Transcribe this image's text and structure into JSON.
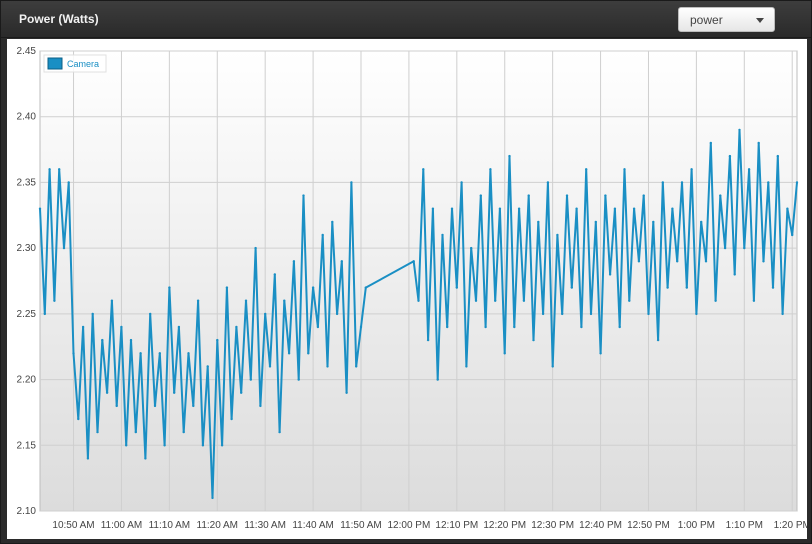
{
  "header": {
    "title": "Power (Watts)",
    "metric_select": {
      "value": "power",
      "options": [
        "power"
      ]
    }
  },
  "colors": {
    "series": "#1a8fc4",
    "grid": "#cfcfcf",
    "axis_text": "#444444"
  },
  "icons": {
    "dropdown": "chevron-down-icon"
  },
  "chart_data": {
    "type": "line",
    "title": "Power (Watts)",
    "xlabel": "",
    "ylabel": "",
    "ylim": [
      2.1,
      2.45
    ],
    "yticks": [
      2.1,
      2.15,
      2.2,
      2.25,
      2.3,
      2.35,
      2.4,
      2.45
    ],
    "ytick_labels": [
      "2.10",
      "2.15",
      "2.20",
      "2.25",
      "2.30",
      "2.35",
      "2.40",
      "2.45"
    ],
    "xlim": [
      "10:43 AM",
      "1:21 PM"
    ],
    "xticks": [
      "10:50 AM",
      "11:00 AM",
      "11:10 AM",
      "11:20 AM",
      "11:30 AM",
      "11:40 AM",
      "11:50 AM",
      "12:00 PM",
      "12:10 PM",
      "12:20 PM",
      "12:30 PM",
      "12:40 PM",
      "12:50 PM",
      "1:00 PM",
      "1:10 PM",
      "1:20 PM"
    ],
    "grid": true,
    "legend": "top-left",
    "series": [
      {
        "name": "Camera",
        "x": [
          "10:43 AM",
          "10:44 AM",
          "10:45 AM",
          "10:46 AM",
          "10:47 AM",
          "10:48 AM",
          "10:49 AM",
          "10:50 AM",
          "10:51 AM",
          "10:52 AM",
          "10:53 AM",
          "10:54 AM",
          "10:55 AM",
          "10:56 AM",
          "10:57 AM",
          "10:58 AM",
          "10:59 AM",
          "11:00 AM",
          "11:01 AM",
          "11:02 AM",
          "11:03 AM",
          "11:04 AM",
          "11:05 AM",
          "11:06 AM",
          "11:07 AM",
          "11:08 AM",
          "11:09 AM",
          "11:10 AM",
          "11:11 AM",
          "11:12 AM",
          "11:13 AM",
          "11:14 AM",
          "11:15 AM",
          "11:16 AM",
          "11:17 AM",
          "11:18 AM",
          "11:19 AM",
          "11:20 AM",
          "11:21 AM",
          "11:22 AM",
          "11:23 AM",
          "11:24 AM",
          "11:25 AM",
          "11:26 AM",
          "11:27 AM",
          "11:28 AM",
          "11:29 AM",
          "11:30 AM",
          "11:31 AM",
          "11:32 AM",
          "11:33 AM",
          "11:34 AM",
          "11:35 AM",
          "11:36 AM",
          "11:37 AM",
          "11:38 AM",
          "11:39 AM",
          "11:40 AM",
          "11:41 AM",
          "11:42 AM",
          "11:43 AM",
          "11:44 AM",
          "11:45 AM",
          "11:46 AM",
          "11:47 AM",
          "11:48 AM",
          "11:49 AM",
          "11:50 AM",
          "11:51 AM",
          "12:01 PM",
          "12:02 PM",
          "12:03 PM",
          "12:04 PM",
          "12:05 PM",
          "12:06 PM",
          "12:07 PM",
          "12:08 PM",
          "12:09 PM",
          "12:10 PM",
          "12:11 PM",
          "12:12 PM",
          "12:13 PM",
          "12:14 PM",
          "12:15 PM",
          "12:16 PM",
          "12:17 PM",
          "12:18 PM",
          "12:19 PM",
          "12:20 PM",
          "12:21 PM",
          "12:22 PM",
          "12:23 PM",
          "12:24 PM",
          "12:25 PM",
          "12:26 PM",
          "12:27 PM",
          "12:28 PM",
          "12:29 PM",
          "12:30 PM",
          "12:31 PM",
          "12:32 PM",
          "12:33 PM",
          "12:34 PM",
          "12:35 PM",
          "12:36 PM",
          "12:37 PM",
          "12:38 PM",
          "12:39 PM",
          "12:40 PM",
          "12:41 PM",
          "12:42 PM",
          "12:43 PM",
          "12:44 PM",
          "12:45 PM",
          "12:46 PM",
          "12:47 PM",
          "12:48 PM",
          "12:49 PM",
          "12:50 PM",
          "12:51 PM",
          "12:52 PM",
          "12:53 PM",
          "12:54 PM",
          "12:55 PM",
          "12:56 PM",
          "12:57 PM",
          "12:58 PM",
          "12:59 PM",
          "1:00 PM",
          "1:01 PM",
          "1:02 PM",
          "1:03 PM",
          "1:04 PM",
          "1:05 PM",
          "1:06 PM",
          "1:07 PM",
          "1:08 PM",
          "1:09 PM",
          "1:10 PM",
          "1:11 PM",
          "1:12 PM",
          "1:13 PM",
          "1:14 PM",
          "1:15 PM",
          "1:16 PM",
          "1:17 PM",
          "1:18 PM",
          "1:19 PM",
          "1:20 PM",
          "1:21 PM"
        ],
        "values": [
          2.33,
          2.25,
          2.36,
          2.26,
          2.36,
          2.3,
          2.35,
          2.22,
          2.17,
          2.24,
          2.14,
          2.25,
          2.16,
          2.23,
          2.19,
          2.26,
          2.18,
          2.24,
          2.15,
          2.23,
          2.16,
          2.22,
          2.14,
          2.25,
          2.18,
          2.22,
          2.15,
          2.27,
          2.19,
          2.24,
          2.16,
          2.22,
          2.18,
          2.26,
          2.15,
          2.21,
          2.11,
          2.23,
          2.15,
          2.27,
          2.17,
          2.24,
          2.19,
          2.26,
          2.2,
          2.3,
          2.18,
          2.25,
          2.21,
          2.28,
          2.16,
          2.26,
          2.22,
          2.29,
          2.2,
          2.34,
          2.22,
          2.27,
          2.24,
          2.31,
          2.21,
          2.32,
          2.25,
          2.29,
          2.19,
          2.35,
          2.21,
          2.24,
          2.27,
          2.29,
          2.26,
          2.36,
          2.23,
          2.33,
          2.2,
          2.31,
          2.24,
          2.33,
          2.27,
          2.35,
          2.21,
          2.3,
          2.26,
          2.34,
          2.24,
          2.36,
          2.26,
          2.33,
          2.22,
          2.37,
          2.24,
          2.33,
          2.26,
          2.34,
          2.23,
          2.32,
          2.25,
          2.35,
          2.21,
          2.31,
          2.25,
          2.34,
          2.27,
          2.33,
          2.24,
          2.36,
          2.25,
          2.32,
          2.22,
          2.34,
          2.28,
          2.33,
          2.24,
          2.36,
          2.26,
          2.33,
          2.29,
          2.34,
          2.25,
          2.32,
          2.23,
          2.35,
          2.27,
          2.33,
          2.29,
          2.35,
          2.27,
          2.36,
          2.25,
          2.32,
          2.29,
          2.38,
          2.26,
          2.34,
          2.3,
          2.37,
          2.28,
          2.39,
          2.3,
          2.36,
          2.26,
          2.38,
          2.29,
          2.35,
          2.27,
          2.37,
          2.25,
          2.33,
          2.31,
          2.35
        ]
      }
    ]
  }
}
